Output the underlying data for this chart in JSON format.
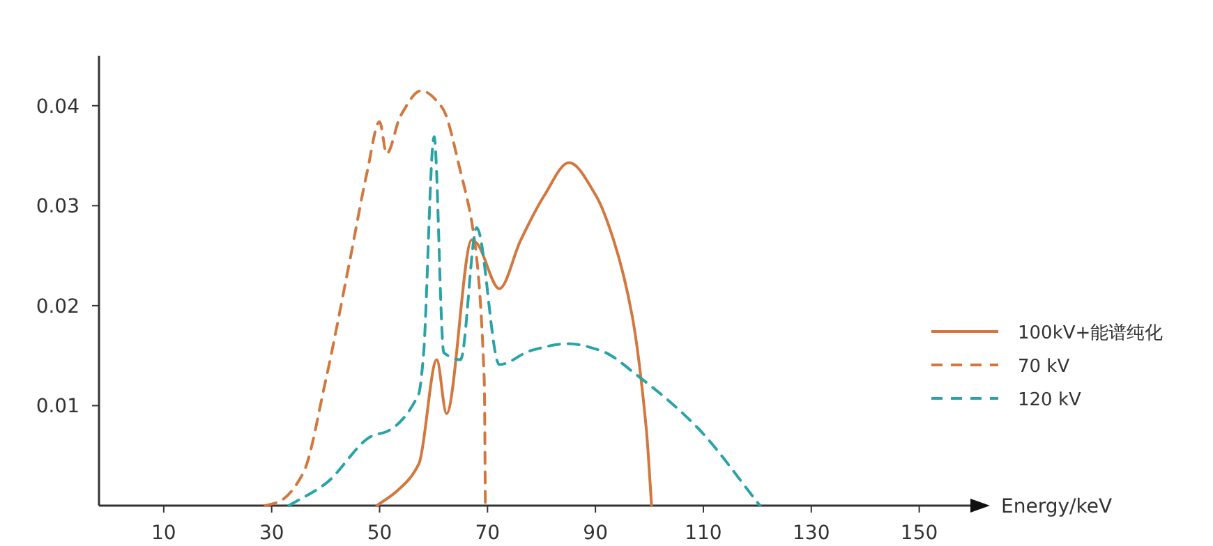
{
  "chart_data": {
    "type": "line",
    "xlabel": "Energy/keV",
    "xlim": [
      -2,
      160
    ],
    "ylim": [
      0,
      0.045
    ],
    "xticks": [
      10,
      30,
      50,
      70,
      90,
      110,
      130,
      150
    ],
    "yticks": [
      0.01,
      0.02,
      0.03,
      0.04
    ],
    "grid": false,
    "legend": "right",
    "series": [
      {
        "name": "100kV+能谱纯化",
        "color": "#d2773e",
        "line_style": "solid",
        "x": [
          49.5,
          53.3,
          57.3,
          60.6,
          62.4,
          67.1,
          68.1,
          72.2,
          76.1,
          80.5,
          85.1,
          90.1,
          93.4,
          96.8,
          99.4,
          100.4
        ],
        "values": [
          0,
          0.0015,
          0.0042,
          0.0146,
          0.0092,
          0.0266,
          0.0262,
          0.0217,
          0.0265,
          0.031,
          0.0343,
          0.031,
          0.0265,
          0.019,
          0.0078,
          0
        ]
      },
      {
        "name": "70 kV",
        "color": "#d2773e",
        "line_style": "dashed",
        "x": [
          28.8,
          31.4,
          35.8,
          40,
          44.3,
          47.7,
          50,
          51.3,
          53.9,
          57.7,
          61.6,
          65,
          67.6,
          69.4,
          69.6
        ],
        "values": [
          0,
          0.0004,
          0.0032,
          0.0125,
          0.024,
          0.0334,
          0.0384,
          0.0352,
          0.039,
          0.0415,
          0.0398,
          0.0334,
          0.0265,
          0.0125,
          0
        ]
      },
      {
        "name": "120 kV",
        "color": "#2aa3a8",
        "line_style": "dashed",
        "x": [
          33.2,
          40,
          48.7,
          51.3,
          57.2,
          58.1,
          60.1,
          61.9,
          65,
          68,
          72.2,
          78,
          84.9,
          91,
          97.8,
          108.9,
          120.5
        ],
        "values": [
          0,
          0.0022,
          0.007,
          0.0074,
          0.0111,
          0.0148,
          0.0369,
          0.0153,
          0.0146,
          0.0278,
          0.0141,
          0.0155,
          0.0162,
          0.0155,
          0.013,
          0.0078,
          0
        ]
      }
    ]
  }
}
